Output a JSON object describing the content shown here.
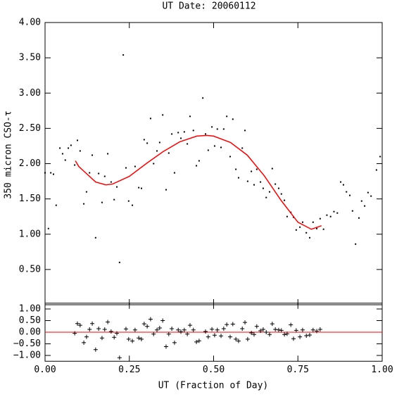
{
  "chart_data": [
    {
      "type": "scatter",
      "title": "UT Date: 20060112",
      "ylabel": "350 micron CSO-τ",
      "xlim": [
        0,
        1
      ],
      "ylim": [
        0,
        4
      ],
      "yticks": [
        {
          "value": 0.5,
          "label": "0.50"
        },
        {
          "value": 1,
          "label": "1.00"
        },
        {
          "value": 1.5,
          "label": "1.50"
        },
        {
          "value": 2,
          "label": "2.00"
        },
        {
          "value": 2.5,
          "label": "2.50"
        },
        {
          "value": 3,
          "label": "3.00"
        },
        {
          "value": 3.5,
          "label": "3.50"
        },
        {
          "value": 4,
          "label": "4.00"
        }
      ],
      "series": [
        {
          "kind": "points",
          "color": "#000000",
          "x": [
            0.0,
            0.01,
            0.017,
            0.025,
            0.033,
            0.044,
            0.052,
            0.06,
            0.069,
            0.077,
            0.088,
            0.096,
            0.104,
            0.115,
            0.123,
            0.132,
            0.14,
            0.15,
            0.159,
            0.169,
            0.177,
            0.186,
            0.196,
            0.205,
            0.213,
            0.221,
            0.232,
            0.24,
            0.248,
            0.259,
            0.267,
            0.278,
            0.286,
            0.294,
            0.303,
            0.313,
            0.322,
            0.332,
            0.34,
            0.349,
            0.359,
            0.367,
            0.376,
            0.384,
            0.395,
            0.403,
            0.413,
            0.422,
            0.43,
            0.44,
            0.449,
            0.457,
            0.468,
            0.476,
            0.484,
            0.495,
            0.503,
            0.511,
            0.522,
            0.53,
            0.539,
            0.549,
            0.557,
            0.566,
            0.574,
            0.585,
            0.593,
            0.601,
            0.612,
            0.62,
            0.628,
            0.639,
            0.647,
            0.656,
            0.666,
            0.674,
            0.683,
            0.693,
            0.701,
            0.71,
            0.718,
            0.729,
            0.737,
            0.745,
            0.756,
            0.764,
            0.775,
            0.785,
            0.795,
            0.806,
            0.816,
            0.826,
            0.836,
            0.847,
            0.857,
            0.867,
            0.877,
            0.885,
            0.894,
            0.904,
            0.912,
            0.921,
            0.931,
            0.939,
            0.948,
            0.958,
            0.967,
            0.983,
            0.994
          ],
          "values": [
            1.87,
            1.08,
            1.87,
            1.85,
            1.41,
            2.22,
            2.14,
            2.05,
            2.22,
            2.26,
            1.98,
            2.33,
            2.18,
            1.43,
            1.6,
            1.87,
            2.12,
            0.95,
            1.86,
            1.45,
            1.82,
            2.14,
            1.74,
            1.49,
            1.67,
            0.6,
            3.54,
            1.94,
            1.47,
            1.41,
            1.96,
            1.66,
            1.65,
            2.34,
            2.29,
            2.64,
            2.0,
            2.18,
            2.3,
            2.69,
            1.63,
            2.15,
            2.42,
            1.87,
            2.44,
            2.36,
            2.45,
            2.28,
            2.67,
            2.47,
            1.97,
            2.04,
            2.93,
            2.42,
            2.19,
            2.52,
            2.25,
            2.49,
            2.23,
            2.49,
            2.67,
            2.1,
            2.63,
            1.92,
            1.8,
            2.22,
            2.47,
            1.75,
            1.89,
            1.7,
            1.92,
            1.74,
            1.65,
            1.52,
            1.6,
            1.93,
            1.71,
            1.65,
            1.57,
            1.48,
            1.25,
            1.31,
            1.24,
            1.06,
            1.1,
            1.17,
            1.02,
            0.95,
            1.17,
            1.08,
            1.22,
            1.07,
            1.27,
            1.25,
            1.32,
            1.3,
            1.74,
            1.7,
            1.6,
            1.55,
            1.33,
            0.86,
            1.23,
            1.47,
            1.4,
            1.59,
            1.54,
            1.91,
            2.1
          ]
        },
        {
          "kind": "line",
          "color": "#ff0000",
          "x": [
            0.09,
            0.1,
            0.15,
            0.18,
            0.2,
            0.25,
            0.3,
            0.35,
            0.4,
            0.45,
            0.48,
            0.5,
            0.55,
            0.6,
            0.65,
            0.7,
            0.75,
            0.79,
            0.82
          ],
          "values": [
            2.04,
            1.96,
            1.74,
            1.7,
            1.71,
            1.82,
            2.0,
            2.17,
            2.31,
            2.39,
            2.4,
            2.39,
            2.3,
            2.12,
            1.83,
            1.48,
            1.17,
            1.07,
            1.12
          ]
        }
      ]
    },
    {
      "type": "scatter",
      "xlabel": "UT (Fraction of Day)",
      "xlim": [
        0,
        1
      ],
      "ylim": [
        -1.25,
        1.25
      ],
      "xticks": [
        {
          "value": 0,
          "label": "0.00"
        },
        {
          "value": 0.25,
          "label": "0.25"
        },
        {
          "value": 0.5,
          "label": "0.50"
        },
        {
          "value": 0.75,
          "label": "0.75"
        },
        {
          "value": 1,
          "label": "1.00"
        }
      ],
      "yticks": [
        {
          "value": -1,
          "label": "−1.00"
        },
        {
          "value": -0.5,
          "label": "−0.50"
        },
        {
          "value": 0,
          "label": "0.00"
        },
        {
          "value": 0.5,
          "label": "0.50"
        },
        {
          "value": 1,
          "label": "1.00"
        }
      ],
      "hline": 0,
      "hline_color": "#ff0000",
      "series": [
        {
          "kind": "plus",
          "color": "#000000",
          "x": [
            0.088,
            0.096,
            0.104,
            0.115,
            0.123,
            0.132,
            0.14,
            0.15,
            0.159,
            0.169,
            0.177,
            0.186,
            0.196,
            0.205,
            0.213,
            0.221,
            0.24,
            0.248,
            0.259,
            0.267,
            0.278,
            0.286,
            0.294,
            0.303,
            0.313,
            0.322,
            0.332,
            0.34,
            0.349,
            0.359,
            0.367,
            0.376,
            0.384,
            0.395,
            0.403,
            0.413,
            0.422,
            0.43,
            0.44,
            0.449,
            0.457,
            0.476,
            0.484,
            0.495,
            0.503,
            0.511,
            0.522,
            0.53,
            0.539,
            0.549,
            0.557,
            0.566,
            0.574,
            0.585,
            0.593,
            0.601,
            0.612,
            0.62,
            0.628,
            0.639,
            0.647,
            0.656,
            0.666,
            0.674,
            0.683,
            0.693,
            0.701,
            0.71,
            0.718,
            0.729,
            0.737,
            0.745,
            0.756,
            0.764,
            0.775,
            0.785,
            0.795,
            0.806,
            0.816
          ],
          "values": [
            -0.05,
            0.37,
            0.3,
            -0.45,
            -0.2,
            0.12,
            0.37,
            -0.75,
            0.15,
            -0.25,
            0.12,
            0.44,
            0.03,
            -0.22,
            -0.05,
            -1.1,
            0.14,
            -0.3,
            -0.38,
            0.1,
            -0.25,
            -0.3,
            0.36,
            0.25,
            0.56,
            -0.08,
            0.1,
            0.18,
            0.5,
            -0.62,
            -0.08,
            0.15,
            -0.45,
            0.1,
            0.02,
            0.1,
            -0.08,
            0.3,
            0.1,
            -0.42,
            -0.37,
            0.03,
            -0.2,
            0.13,
            -0.13,
            0.1,
            -0.16,
            0.15,
            0.33,
            -0.2,
            0.35,
            -0.3,
            -0.38,
            0.15,
            0.42,
            -0.3,
            -0.03,
            -0.1,
            0.25,
            0.06,
            0.12,
            0.0,
            -0.1,
            0.36,
            0.12,
            0.1,
            0.08,
            -0.1,
            -0.07,
            0.32,
            -0.28,
            0.08,
            -0.2,
            0.1,
            -0.15,
            -0.12,
            0.1,
            0.05,
            0.12
          ]
        }
      ]
    }
  ]
}
